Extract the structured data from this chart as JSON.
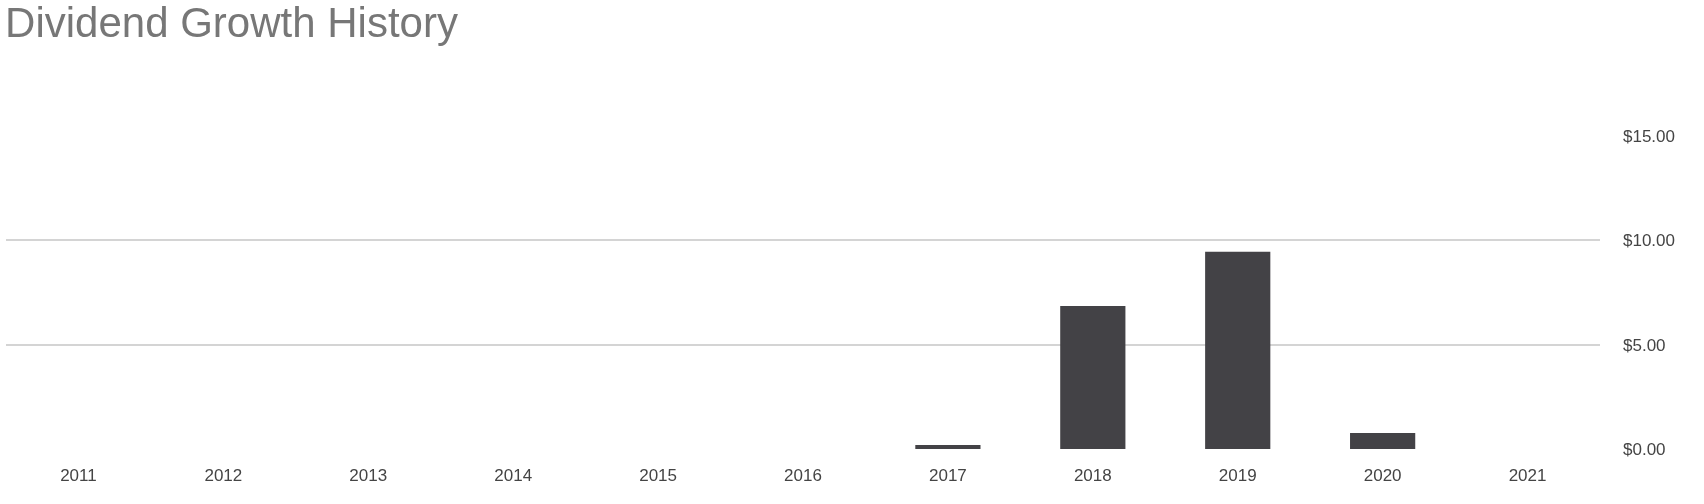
{
  "chart_data": {
    "type": "bar",
    "title": "Dividend Growth History",
    "categories": [
      "2011",
      "2012",
      "2013",
      "2014",
      "2015",
      "2016",
      "2017",
      "2018",
      "2019",
      "2020",
      "2021"
    ],
    "values": [
      null,
      null,
      null,
      null,
      null,
      null,
      0.19,
      6.85,
      9.45,
      0.77,
      null
    ],
    "color": "#434246",
    "ylim": [
      0,
      15
    ],
    "yticks": [
      {
        "value": 0,
        "label": "$0.00"
      },
      {
        "value": 5,
        "label": "$5.00"
      },
      {
        "value": 10,
        "label": "$10.00"
      },
      {
        "value": 15,
        "label": "$15.00"
      }
    ],
    "grid": "y",
    "legend": false
  }
}
